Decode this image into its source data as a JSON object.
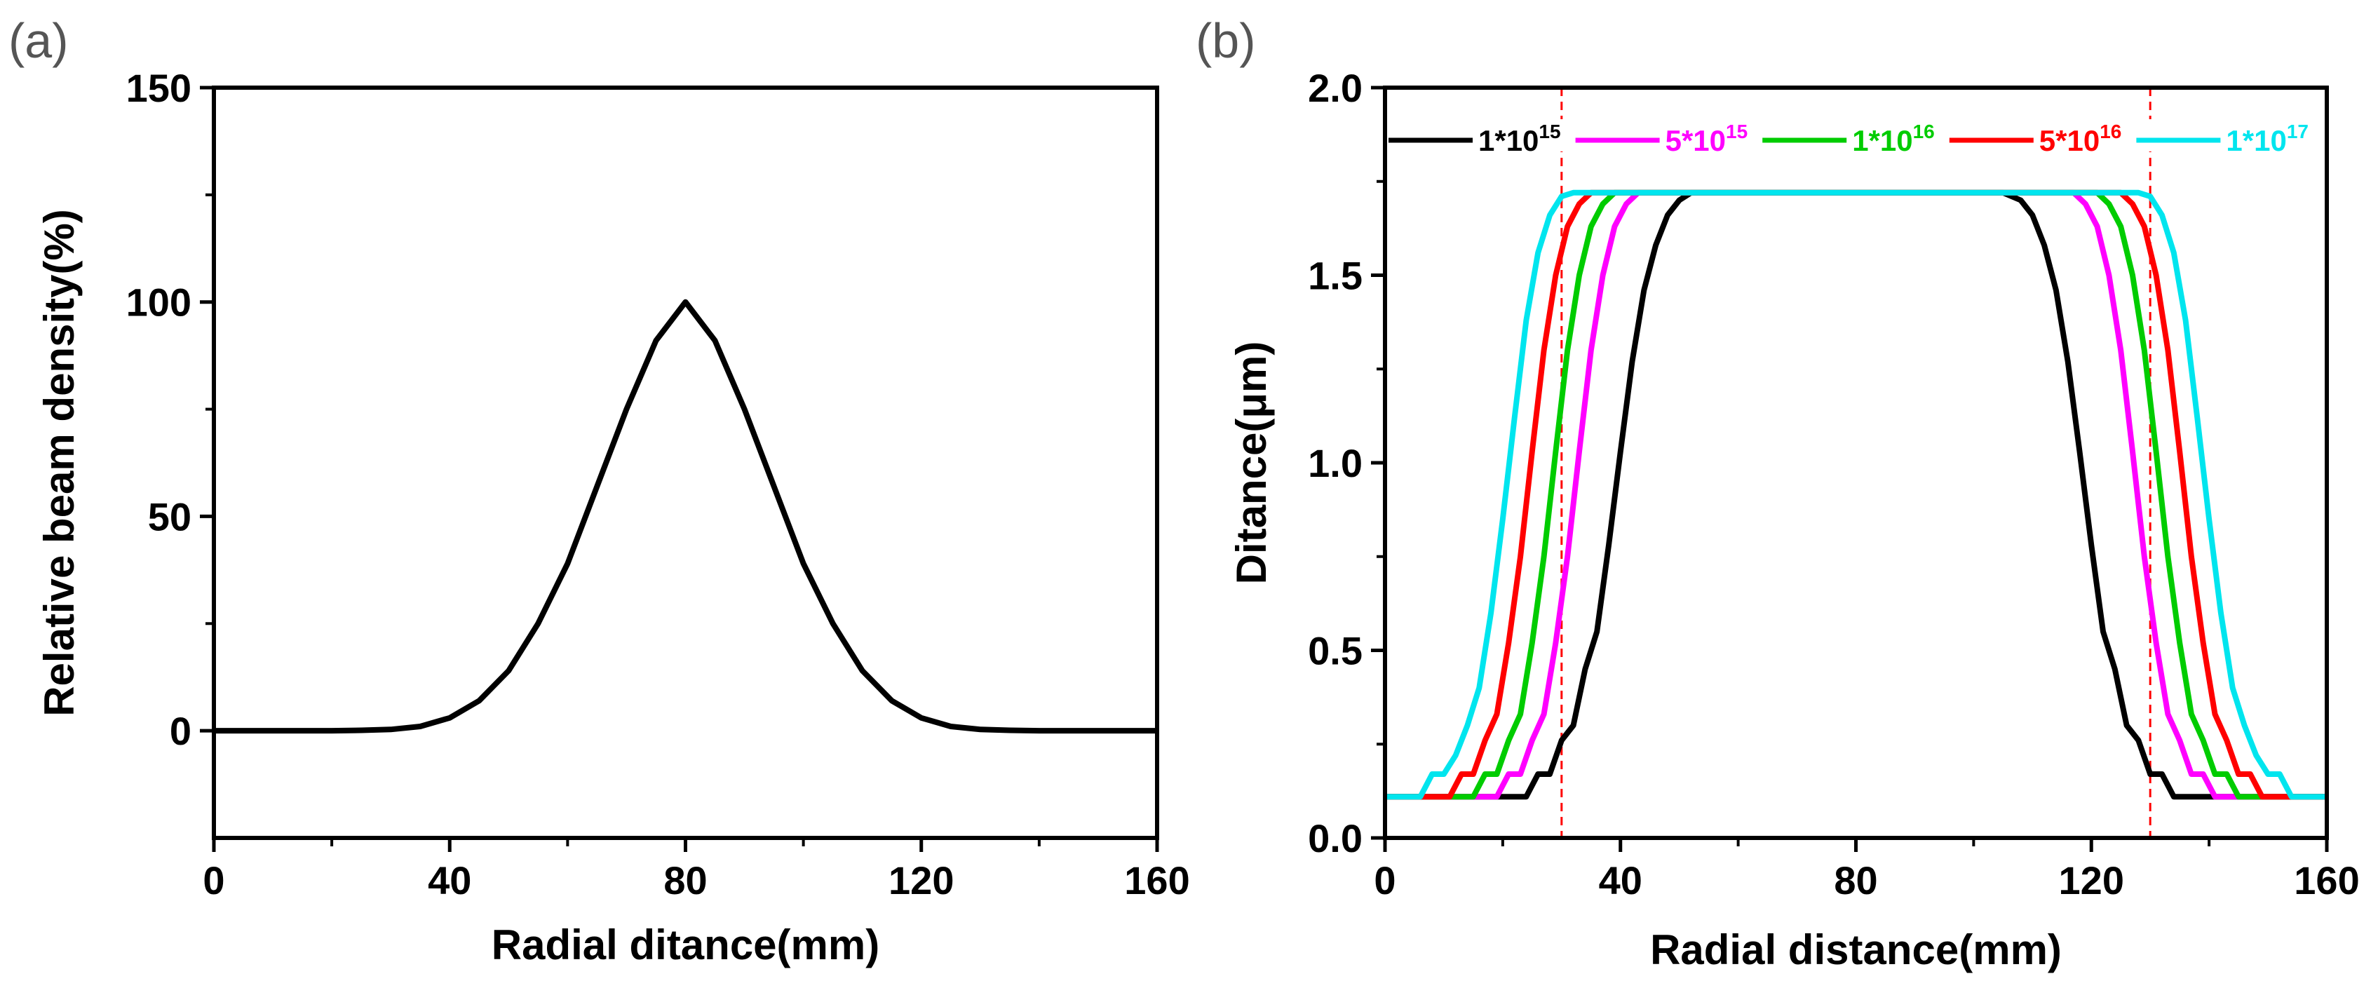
{
  "panels": [
    "(a)",
    "(b)"
  ],
  "chart_data": [
    {
      "type": "line",
      "panel_label": "(a)",
      "title": "",
      "xlabel": "Radial ditance(mm)",
      "ylabel": "Relative beam density(%)",
      "xlim": [
        0,
        160
      ],
      "ylim": [
        -25,
        150
      ],
      "xticks": [
        0,
        40,
        80,
        120,
        160
      ],
      "yticks": [
        0,
        50,
        100,
        150
      ],
      "xtick_labels": [
        "0",
        "40",
        "80",
        "120",
        "160"
      ],
      "ytick_labels": [
        "0",
        "50",
        "100",
        "150"
      ],
      "grid": false,
      "series": [
        {
          "name": "beam density",
          "color": "#000000",
          "x": [
            0,
            10,
            20,
            25,
            30,
            35,
            40,
            45,
            50,
            55,
            60,
            65,
            70,
            75,
            80,
            85,
            90,
            95,
            100,
            105,
            110,
            115,
            120,
            125,
            130,
            135,
            140,
            150,
            160
          ],
          "y": [
            0,
            0,
            0,
            0.1,
            0.3,
            1,
            3,
            7,
            14,
            25,
            39,
            57,
            75,
            91,
            100,
            91,
            75,
            57,
            39,
            25,
            14,
            7,
            3,
            1,
            0.3,
            0.1,
            0,
            0,
            0
          ]
        }
      ]
    },
    {
      "type": "line",
      "panel_label": "(b)",
      "title": "",
      "xlabel": "Radial distance(mm)",
      "ylabel": "Ditance(μm)",
      "xlim": [
        0,
        160
      ],
      "ylim": [
        0,
        2.0
      ],
      "xticks": [
        0,
        40,
        80,
        120,
        160
      ],
      "yticks": [
        0.0,
        0.5,
        1.0,
        1.5,
        2.0
      ],
      "xtick_labels": [
        "0",
        "40",
        "80",
        "120",
        "160"
      ],
      "ytick_labels": [
        "0.0",
        "0.5",
        "1.0",
        "1.5",
        "2.0"
      ],
      "grid": false,
      "vlines": [
        {
          "x": 30,
          "color": "#ff0000",
          "style": "dashed"
        },
        {
          "x": 130,
          "color": "#ff0000",
          "style": "dashed"
        }
      ],
      "legend_position": "top",
      "series": [
        {
          "name": "1*10^15",
          "base": "1*10",
          "exp": "15",
          "color": "#000000",
          "x": [
            0,
            18,
            24,
            26,
            28,
            30,
            32,
            34,
            36,
            38,
            40,
            42,
            44,
            46,
            48,
            50,
            52,
            55,
            80,
            105,
            108,
            110,
            112,
            114,
            116,
            118,
            120,
            122,
            124,
            126,
            128,
            130,
            132,
            134,
            136,
            142,
            160
          ],
          "y": [
            0.11,
            0.11,
            0.11,
            0.17,
            0.17,
            0.26,
            0.3,
            0.45,
            0.55,
            0.78,
            1.03,
            1.27,
            1.46,
            1.58,
            1.66,
            1.7,
            1.72,
            1.72,
            1.72,
            1.72,
            1.7,
            1.66,
            1.58,
            1.46,
            1.27,
            1.03,
            0.78,
            0.55,
            0.45,
            0.3,
            0.26,
            0.17,
            0.17,
            0.11,
            0.11,
            0.11,
            0.11
          ]
        },
        {
          "name": "5*10^15",
          "base": "5*10",
          "exp": "15",
          "color": "#ff00ff",
          "x": [
            0,
            17,
            19,
            21,
            23,
            25,
            27,
            29,
            31,
            33,
            35,
            37,
            39,
            41,
            43,
            45,
            80,
            115,
            117,
            119,
            121,
            123,
            125,
            127,
            129,
            131,
            133,
            135,
            137,
            139,
            141,
            143,
            160
          ],
          "y": [
            0.11,
            0.11,
            0.11,
            0.17,
            0.17,
            0.26,
            0.33,
            0.52,
            0.75,
            1.03,
            1.3,
            1.5,
            1.63,
            1.69,
            1.72,
            1.72,
            1.72,
            1.72,
            1.72,
            1.69,
            1.63,
            1.5,
            1.3,
            1.03,
            0.75,
            0.52,
            0.33,
            0.26,
            0.17,
            0.17,
            0.11,
            0.11,
            0.11
          ]
        },
        {
          "name": "1*10^16",
          "base": "1*10",
          "exp": "16",
          "color": "#00cc00",
          "x": [
            0,
            13,
            15,
            17,
            19,
            21,
            23,
            25,
            27,
            29,
            31,
            33,
            35,
            37,
            39,
            41,
            80,
            119,
            121,
            123,
            125,
            127,
            129,
            131,
            133,
            135,
            137,
            139,
            141,
            143,
            145,
            147,
            160
          ],
          "y": [
            0.11,
            0.11,
            0.11,
            0.17,
            0.17,
            0.26,
            0.33,
            0.52,
            0.75,
            1.03,
            1.3,
            1.5,
            1.63,
            1.69,
            1.72,
            1.72,
            1.72,
            1.72,
            1.72,
            1.69,
            1.63,
            1.5,
            1.3,
            1.03,
            0.75,
            0.52,
            0.33,
            0.26,
            0.17,
            0.17,
            0.11,
            0.11,
            0.11
          ]
        },
        {
          "name": "5*10^16",
          "base": "5*10",
          "exp": "16",
          "color": "#ff0000",
          "x": [
            0,
            9,
            11,
            13,
            15,
            17,
            19,
            21,
            23,
            25,
            27,
            29,
            31,
            33,
            35,
            37,
            80,
            123,
            125,
            127,
            129,
            131,
            133,
            135,
            137,
            139,
            141,
            143,
            145,
            147,
            149,
            151,
            160
          ],
          "y": [
            0.11,
            0.11,
            0.11,
            0.17,
            0.17,
            0.26,
            0.33,
            0.52,
            0.75,
            1.03,
            1.3,
            1.5,
            1.63,
            1.69,
            1.72,
            1.72,
            1.72,
            1.72,
            1.72,
            1.69,
            1.63,
            1.5,
            1.3,
            1.03,
            0.75,
            0.52,
            0.33,
            0.26,
            0.17,
            0.17,
            0.11,
            0.11,
            0.11
          ]
        },
        {
          "name": "1*10^17",
          "base": "1*10",
          "exp": "17",
          "color": "#00e5ee",
          "x": [
            0,
            6,
            8,
            10,
            12,
            14,
            16,
            18,
            20,
            22,
            24,
            26,
            28,
            30,
            32,
            34,
            80,
            126,
            128,
            130,
            132,
            134,
            136,
            138,
            140,
            142,
            144,
            146,
            148,
            150,
            152,
            154,
            160
          ],
          "y": [
            0.11,
            0.11,
            0.17,
            0.17,
            0.22,
            0.3,
            0.4,
            0.6,
            0.85,
            1.12,
            1.38,
            1.56,
            1.66,
            1.71,
            1.72,
            1.72,
            1.72,
            1.72,
            1.72,
            1.71,
            1.66,
            1.56,
            1.38,
            1.12,
            0.85,
            0.6,
            0.4,
            0.3,
            0.22,
            0.17,
            0.17,
            0.11,
            0.11
          ]
        }
      ]
    }
  ]
}
